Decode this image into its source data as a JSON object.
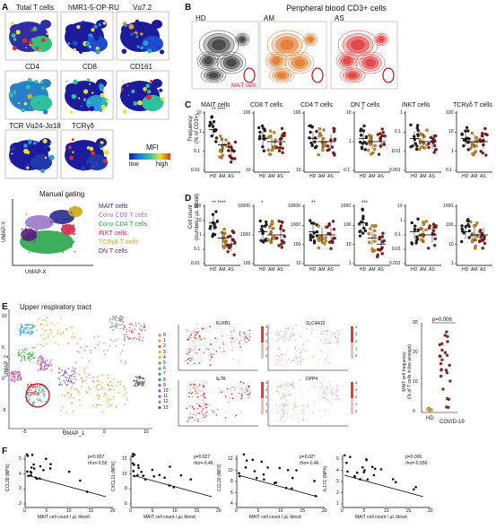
{
  "panel_letters": [
    "A",
    "B",
    "C",
    "D",
    "E",
    "F"
  ],
  "panelA": {
    "tiles": [
      "Total T cells",
      "hMR1-5-OP-RU",
      "Vα7.2",
      "CD4",
      "CD8",
      "CD161",
      "TCR Vα24-Jα18",
      "TCRγδ"
    ],
    "mfi": {
      "label": "MFI",
      "low": "low",
      "high": "high"
    },
    "gating": {
      "title": "Manual gating",
      "x_label": "UMAP-X",
      "y_label": "UMAP-Y",
      "legend": [
        {
          "name": "MAIT cells",
          "color": "#2a2a8e"
        },
        {
          "name": "Conv CD8 T cells",
          "color": "#9b78c9"
        },
        {
          "name": "Conv CD4 T cells",
          "color": "#2aa54a"
        },
        {
          "name": "iNKT cells",
          "color": "#e0204a"
        },
        {
          "name": "TCRγδ T cells",
          "color": "#c9a818"
        },
        {
          "name": "DN T cells",
          "color": "#5a1e7a"
        }
      ]
    }
  },
  "panelB": {
    "title": "Peripheral blood CD3+ cells",
    "groups": [
      {
        "name": "HD",
        "color": "#333333"
      },
      {
        "name": "AM",
        "color": "#e07020"
      },
      {
        "name": "AS",
        "color": "#e03030"
      }
    ],
    "mait_label": "MAIT cells"
  },
  "panelC": {
    "ylabel": "Frequency\n(% of CD3+)",
    "plots": [
      {
        "title": "MAIT cells",
        "sig": "**  ****",
        "ticks": [
          "10",
          "1",
          "0.1",
          "0.01"
        ]
      },
      {
        "title": "CD8 T cells",
        "sig": "",
        "ticks": [
          "100",
          "10"
        ]
      },
      {
        "title": "CD4 T cells",
        "sig": "",
        "ticks": [
          "100",
          "10"
        ]
      },
      {
        "title": "DN T cells",
        "sig": "*",
        "ticks": [
          "10",
          "1",
          "0.1"
        ]
      },
      {
        "title": "iNKT cells",
        "sig": "",
        "ticks": [
          "1",
          "0.1",
          "0.01",
          "0.001"
        ]
      },
      {
        "title": "TCRγδ T cells",
        "sig": "",
        "ticks": [
          "100",
          "10",
          "1",
          "0.1"
        ]
      }
    ],
    "groups": [
      "HD",
      "AM",
      "AS"
    ]
  },
  "panelD": {
    "ylabel": "Cell count\n(number / µL blood)",
    "plots": [
      {
        "sig": "**  ****",
        "ticks": [
          "100",
          "10",
          "1",
          "0.1",
          "0.01"
        ]
      },
      {
        "sig": "*",
        "ticks": [
          "10000",
          "1000",
          "100"
        ]
      },
      {
        "sig": "**",
        "ticks": [
          "10000",
          "1000",
          "100",
          "10"
        ]
      },
      {
        "sig": "***",
        "ticks": [
          "1000",
          "100",
          "10",
          "1"
        ]
      },
      {
        "sig": "",
        "ticks": [
          "10",
          "1",
          "0.1",
          "0.01",
          "0.001"
        ]
      },
      {
        "sig": "",
        "ticks": [
          "1000",
          "100",
          "10",
          "1"
        ]
      }
    ],
    "groups": [
      "HD",
      "AM",
      "AS"
    ]
  },
  "panelE": {
    "title": "Upper respiratory tract",
    "x_label": "UMAP_1",
    "y_label": "UMAP_2",
    "cluster_labels": [
      "0",
      "1",
      "2",
      "3",
      "4",
      "5",
      "6",
      "7",
      "8",
      "9",
      "10",
      "11",
      "12",
      "13"
    ],
    "mait_label": "MAIT\ncells",
    "genes": [
      "KLRB1",
      "SLC4A10",
      "IL7R",
      "DPP4"
    ],
    "colorbar_ticks": [
      "4",
      "3",
      "2",
      "1",
      "0"
    ],
    "xticks": [
      "-5",
      "0",
      "5",
      "10"
    ],
    "yticks": [
      "10",
      "5",
      "0",
      "-5"
    ],
    "freq_plot": {
      "pvalue": "p=0.006",
      "ylabel": "MAIT cell frequency\n(% of T cells in the airways)",
      "groups": [
        "HD",
        "COVID-19"
      ],
      "ticks": [
        "30",
        "20",
        "10",
        "0"
      ]
    }
  },
  "panelF": {
    "x_label": "MAIT cell count / µL blood",
    "plots": [
      {
        "ylabel": "CCL28 (NPX)",
        "p": "p=0.007",
        "rho": "rho=-0.55",
        "yticks": [
          "5",
          "4",
          "3",
          "2"
        ],
        "xticks": [
          "0",
          "5",
          "10",
          "15",
          "20"
        ]
      },
      {
        "ylabel": "CXCL11 (NPX)",
        "p": "p=0.027",
        "rho": "rho=-0.46",
        "yticks": [
          "12",
          "10",
          "8",
          "6"
        ],
        "xticks": [
          "0",
          "5",
          "10",
          "15",
          "20"
        ]
      },
      {
        "ylabel": "CCL20 (NPX)",
        "p": "p=0.02*",
        "rho": "rho=-0.46",
        "yticks": [
          "12",
          "10",
          "8",
          "6",
          "4"
        ],
        "xticks": [
          "0",
          "5",
          "10",
          "15",
          "20"
        ]
      },
      {
        "ylabel": "IL17C (NPX)",
        "p": "p=0.006",
        "rho": "rho=-0.556",
        "yticks": [
          "5",
          "4",
          "3",
          "2",
          "1"
        ],
        "xticks": [
          "0",
          "5",
          "10",
          "15",
          "20"
        ]
      }
    ]
  }
}
